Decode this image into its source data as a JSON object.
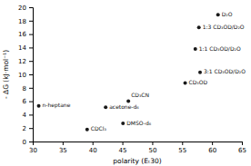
{
  "chart_data": {
    "type": "scatter",
    "x": [
      31.0,
      39.1,
      42.2,
      45.1,
      46.0,
      55.5,
      58.0,
      57.2,
      57.8,
      61.0
    ],
    "values": [
      5.3,
      1.8,
      5.1,
      2.7,
      6.0,
      8.7,
      10.3,
      13.8,
      17.0,
      18.9
    ],
    "labels": [
      "n-heptane",
      "CDCl₃",
      "acetone-d₆",
      "DMSO-d₆",
      "CD₃CN",
      "CD₃OD",
      "3:1 CD₃OD/D₂O",
      "1:1 CD₃OD/D₂O",
      "1:3 CD₃OD/D₂O",
      "D₂O"
    ],
    "xlabel": "polarity (Eₜ30)",
    "ylabel": "- ΔG (kJ·mol⁻¹)",
    "xlim": [
      30,
      65
    ],
    "ylim": [
      0,
      20
    ],
    "xticks": [
      30,
      35,
      40,
      45,
      50,
      55,
      60,
      65
    ],
    "yticks": [
      0,
      2,
      4,
      6,
      8,
      10,
      12,
      14,
      16,
      18,
      20
    ],
    "color": "#1a1a1a",
    "grid": false
  }
}
